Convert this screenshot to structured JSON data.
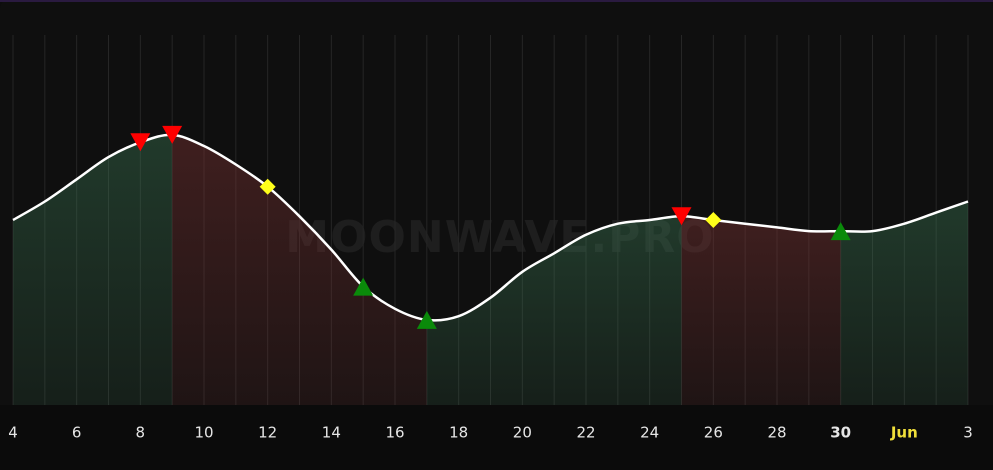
{
  "chart_data": {
    "type": "line",
    "watermark": "MOONWAVE.PRO",
    "categories": [
      "4",
      null,
      "6",
      null,
      "8",
      null,
      "10",
      null,
      "12",
      null,
      "14",
      null,
      "16",
      null,
      "18",
      null,
      "20",
      null,
      "22",
      null,
      "24",
      null,
      "26",
      null,
      "28",
      null,
      "30",
      null,
      "Jun",
      null,
      "3"
    ],
    "values": [
      50,
      55,
      61,
      67,
      71,
      73,
      70,
      65,
      59,
      51,
      42,
      32,
      26,
      23,
      24,
      29,
      36,
      41,
      46,
      49,
      50,
      51,
      50,
      49,
      48,
      47,
      47,
      47,
      49,
      52,
      55
    ],
    "ylim": [
      0,
      100
    ],
    "color": "#ffffff",
    "regions": [
      {
        "start": 0,
        "end": 5,
        "trend": "up"
      },
      {
        "start": 5,
        "end": 13,
        "trend": "down"
      },
      {
        "start": 13,
        "end": 21,
        "trend": "up"
      },
      {
        "start": 21,
        "end": 26,
        "trend": "down"
      },
      {
        "start": 26,
        "end": 30,
        "trend": "up"
      }
    ],
    "region_colors": {
      "up": "#3c7a55",
      "down": "#7a3232"
    },
    "signals": [
      {
        "index": 4,
        "kind": "sell"
      },
      {
        "index": 5,
        "kind": "sell"
      },
      {
        "index": 8,
        "kind": "hold"
      },
      {
        "index": 11,
        "kind": "buy"
      },
      {
        "index": 13,
        "kind": "buy"
      },
      {
        "index": 21,
        "kind": "sell"
      },
      {
        "index": 22,
        "kind": "hold"
      },
      {
        "index": 26,
        "kind": "buy"
      }
    ],
    "signal_colors": {
      "sell": "#ff0000",
      "buy": "#0a8a0a",
      "hold": "#ffff1a"
    },
    "grid": true
  }
}
